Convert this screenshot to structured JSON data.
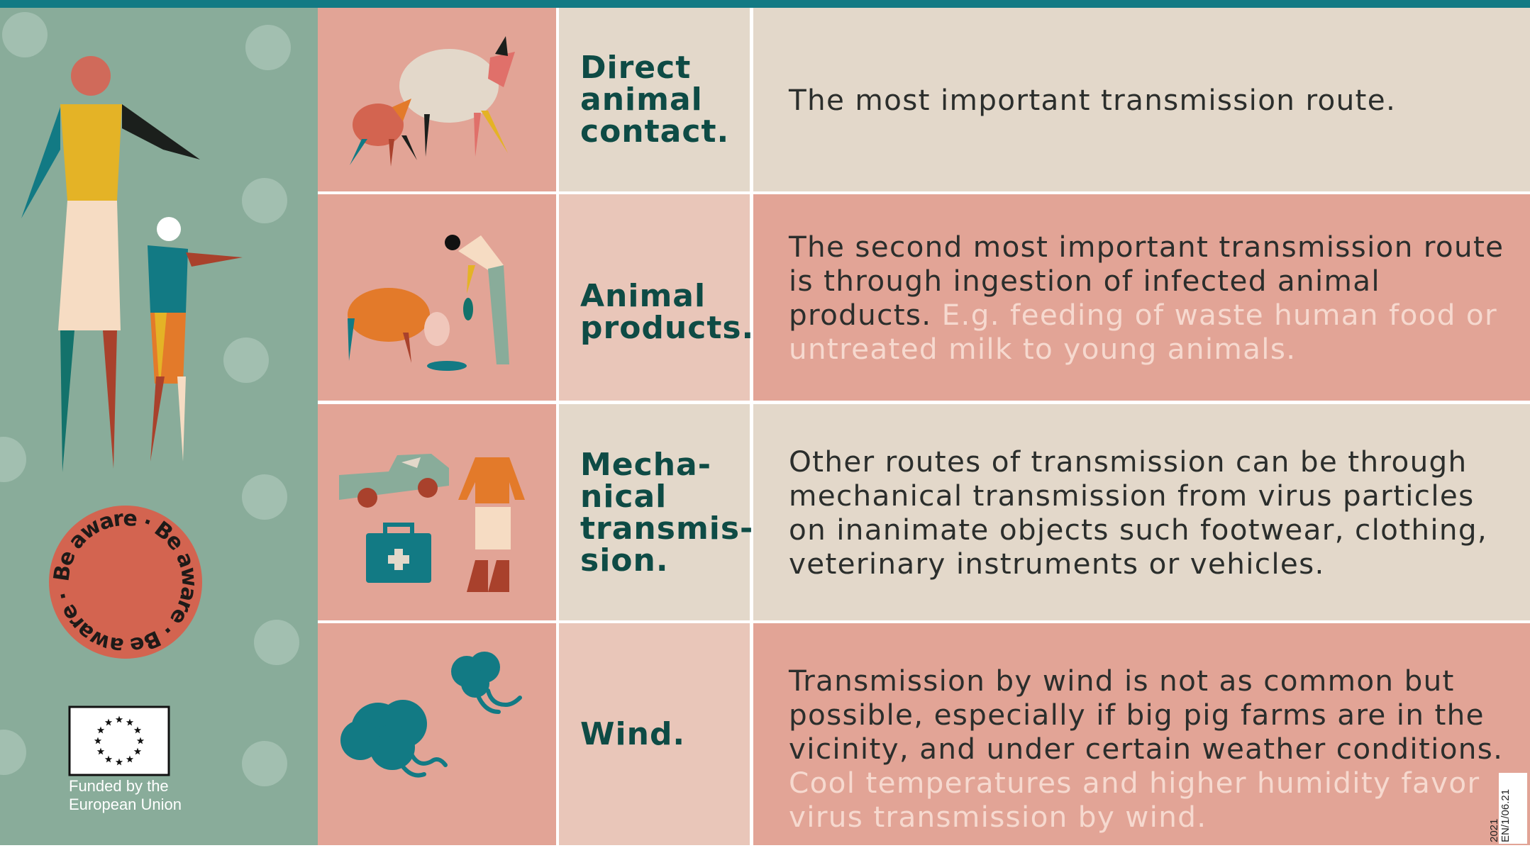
{
  "badge": {
    "text": "Be aware · Be aware · Be aware ·"
  },
  "funding": {
    "lines": [
      "Funded by the",
      "European Union"
    ]
  },
  "code": {
    "lines": [
      "2021",
      "EN/1/06.21"
    ]
  },
  "rows": [
    {
      "title_lines": [
        "Direct",
        "animal",
        "contact."
      ],
      "text": "The most important transmission route.",
      "note": null
    },
    {
      "title_lines": [
        "Animal",
        "products."
      ],
      "text": "The second most important transmission route is through ingestion of infected animal products.",
      "note": "E.g. feeding of waste human food or untreated milk to young animals."
    },
    {
      "title_lines": [
        "Mecha-",
        "nical",
        "transmis-",
        "sion."
      ],
      "text": "Other routes of transmission can be through mechanical transmission from virus particles on inanimate objects such footwear, clothing, veterinary instruments or vehicles.",
      "note": null
    },
    {
      "title_lines": [
        "Wind."
      ],
      "text": "Transmission by wind is not as common but possible, especially if big pig farms are in the vicinity, and under certain weather conditions.",
      "note": "Cool temperatures and higher humidity favor virus transmission by wind."
    }
  ]
}
